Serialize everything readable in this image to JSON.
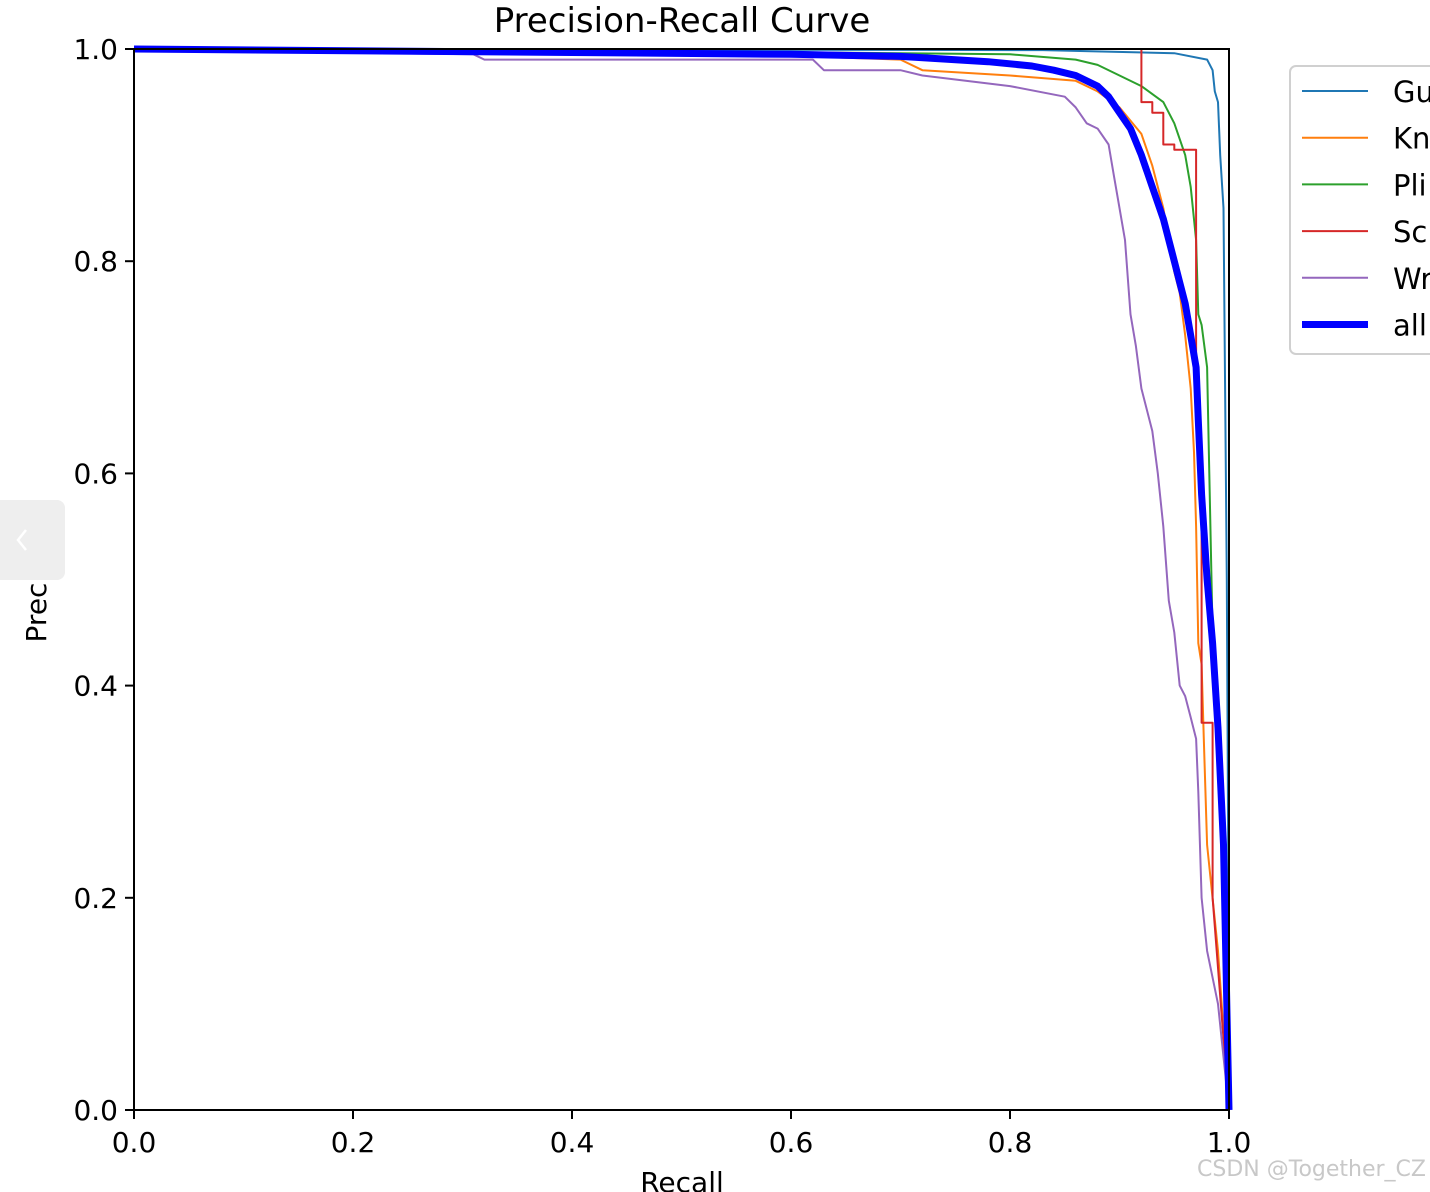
{
  "chart_data": {
    "type": "line",
    "title": "Precision-Recall Curve",
    "xlabel": "Recall",
    "ylabel": "Precision",
    "xlim": [
      0.0,
      1.0
    ],
    "ylim": [
      0.0,
      1.0
    ],
    "xticks": [
      "0.0",
      "0.2",
      "0.4",
      "0.6",
      "0.8",
      "1.0"
    ],
    "yticks": [
      "0.0",
      "0.2",
      "0.4",
      "0.6",
      "0.8",
      "1.0"
    ],
    "grid": false,
    "legend_position": "outside-right",
    "series": [
      {
        "name": "Gu",
        "color": "#1f77b4",
        "width": 2,
        "points": [
          [
            0,
            1.0
          ],
          [
            0.83,
            0.999
          ],
          [
            0.95,
            0.996
          ],
          [
            0.98,
            0.99
          ],
          [
            0.985,
            0.98
          ],
          [
            0.987,
            0.96
          ],
          [
            0.99,
            0.95
          ],
          [
            0.992,
            0.9
          ],
          [
            0.995,
            0.85
          ],
          [
            0.998,
            0.5
          ],
          [
            1.0,
            0.1
          ],
          [
            1.0,
            0.0
          ]
        ]
      },
      {
        "name": "Kn",
        "color": "#ff7f0e",
        "width": 2,
        "points": [
          [
            0,
            1.0
          ],
          [
            0.5,
            0.997
          ],
          [
            0.7,
            0.99
          ],
          [
            0.72,
            0.98
          ],
          [
            0.8,
            0.975
          ],
          [
            0.86,
            0.97
          ],
          [
            0.88,
            0.96
          ],
          [
            0.9,
            0.945
          ],
          [
            0.92,
            0.92
          ],
          [
            0.93,
            0.89
          ],
          [
            0.94,
            0.85
          ],
          [
            0.945,
            0.82
          ],
          [
            0.95,
            0.79
          ],
          [
            0.955,
            0.77
          ],
          [
            0.96,
            0.73
          ],
          [
            0.965,
            0.68
          ],
          [
            0.968,
            0.62
          ],
          [
            0.97,
            0.55
          ],
          [
            0.972,
            0.44
          ],
          [
            0.975,
            0.42
          ],
          [
            0.977,
            0.35
          ],
          [
            0.98,
            0.25
          ],
          [
            0.99,
            0.15
          ],
          [
            1.0,
            0.0
          ]
        ]
      },
      {
        "name": "Pli",
        "color": "#2ca02c",
        "width": 2,
        "points": [
          [
            0,
            1.0
          ],
          [
            0.6,
            0.997
          ],
          [
            0.8,
            0.995
          ],
          [
            0.86,
            0.99
          ],
          [
            0.88,
            0.985
          ],
          [
            0.9,
            0.975
          ],
          [
            0.92,
            0.965
          ],
          [
            0.94,
            0.95
          ],
          [
            0.95,
            0.93
          ],
          [
            0.96,
            0.9
          ],
          [
            0.965,
            0.87
          ],
          [
            0.97,
            0.82
          ],
          [
            0.972,
            0.75
          ],
          [
            0.975,
            0.74
          ],
          [
            0.98,
            0.7
          ],
          [
            0.982,
            0.6
          ],
          [
            0.985,
            0.45
          ],
          [
            0.99,
            0.35
          ],
          [
            0.995,
            0.2
          ],
          [
            1.0,
            0.0
          ]
        ]
      },
      {
        "name": "Sc",
        "color": "#d62728",
        "width": 2,
        "points": [
          [
            0,
            1.0
          ],
          [
            0.92,
            1.0
          ],
          [
            0.92,
            0.95
          ],
          [
            0.93,
            0.95
          ],
          [
            0.93,
            0.94
          ],
          [
            0.94,
            0.94
          ],
          [
            0.94,
            0.91
          ],
          [
            0.95,
            0.91
          ],
          [
            0.95,
            0.905
          ],
          [
            0.97,
            0.905
          ],
          [
            0.97,
            0.7
          ],
          [
            0.975,
            0.6
          ],
          [
            0.975,
            0.365
          ],
          [
            0.985,
            0.365
          ],
          [
            0.985,
            0.2
          ],
          [
            1.0,
            0.0
          ]
        ]
      },
      {
        "name": "Wr",
        "color": "#9467bd",
        "width": 2,
        "points": [
          [
            0,
            0.999
          ],
          [
            0.31,
            0.995
          ],
          [
            0.32,
            0.99
          ],
          [
            0.4,
            0.99
          ],
          [
            0.62,
            0.99
          ],
          [
            0.63,
            0.98
          ],
          [
            0.7,
            0.98
          ],
          [
            0.72,
            0.975
          ],
          [
            0.8,
            0.965
          ],
          [
            0.85,
            0.955
          ],
          [
            0.86,
            0.945
          ],
          [
            0.87,
            0.93
          ],
          [
            0.88,
            0.925
          ],
          [
            0.89,
            0.91
          ],
          [
            0.895,
            0.88
          ],
          [
            0.9,
            0.85
          ],
          [
            0.905,
            0.82
          ],
          [
            0.91,
            0.75
          ],
          [
            0.915,
            0.72
          ],
          [
            0.92,
            0.68
          ],
          [
            0.93,
            0.64
          ],
          [
            0.935,
            0.6
          ],
          [
            0.94,
            0.55
          ],
          [
            0.945,
            0.48
          ],
          [
            0.95,
            0.45
          ],
          [
            0.955,
            0.4
          ],
          [
            0.96,
            0.39
          ],
          [
            0.965,
            0.37
          ],
          [
            0.97,
            0.35
          ],
          [
            0.972,
            0.3
          ],
          [
            0.975,
            0.2
          ],
          [
            0.98,
            0.15
          ],
          [
            0.99,
            0.1
          ],
          [
            1.0,
            0.0
          ]
        ]
      },
      {
        "name": "all",
        "color": "#0000ff",
        "width": 7,
        "points": [
          [
            0,
            1.0
          ],
          [
            0.6,
            0.995
          ],
          [
            0.7,
            0.993
          ],
          [
            0.78,
            0.988
          ],
          [
            0.82,
            0.984
          ],
          [
            0.84,
            0.98
          ],
          [
            0.86,
            0.975
          ],
          [
            0.88,
            0.965
          ],
          [
            0.89,
            0.955
          ],
          [
            0.9,
            0.94
          ],
          [
            0.91,
            0.925
          ],
          [
            0.92,
            0.9
          ],
          [
            0.93,
            0.87
          ],
          [
            0.94,
            0.84
          ],
          [
            0.945,
            0.82
          ],
          [
            0.95,
            0.8
          ],
          [
            0.955,
            0.78
          ],
          [
            0.96,
            0.76
          ],
          [
            0.965,
            0.73
          ],
          [
            0.97,
            0.7
          ],
          [
            0.972,
            0.65
          ],
          [
            0.975,
            0.58
          ],
          [
            0.98,
            0.5
          ],
          [
            0.985,
            0.44
          ],
          [
            0.99,
            0.36
          ],
          [
            0.995,
            0.25
          ],
          [
            1.0,
            0.0
          ]
        ]
      }
    ]
  },
  "watermark": "CSDN @Together_CZ"
}
